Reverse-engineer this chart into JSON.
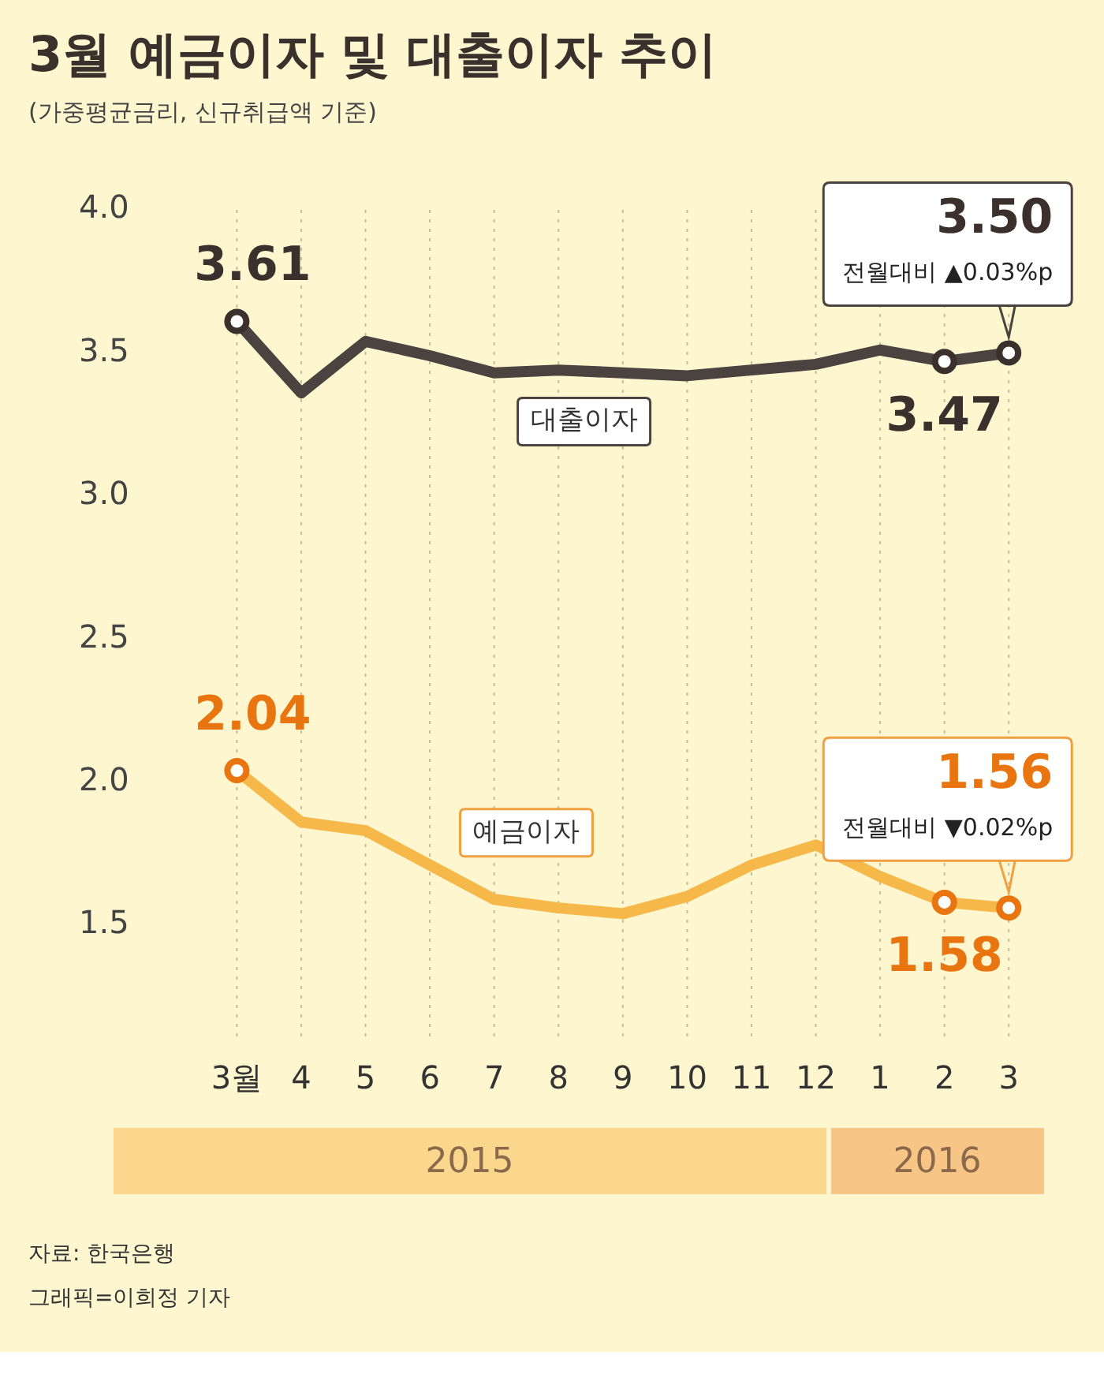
{
  "chart_data": {
    "type": "line",
    "title": "3월 예금이자 및 대출이자 추이",
    "subtitle": "(가중평균금리, 신규취급액 기준)",
    "categories": [
      "3월",
      "4",
      "5",
      "6",
      "7",
      "8",
      "9",
      "10",
      "11",
      "12",
      "1",
      "2",
      "3"
    ],
    "series": [
      {
        "name": "대출이자",
        "color": "#4a4340",
        "values": [
          3.61,
          3.36,
          3.54,
          3.49,
          3.43,
          3.44,
          3.43,
          3.42,
          3.44,
          3.46,
          3.51,
          3.47,
          3.5
        ],
        "value_labels": [
          "3.61",
          null,
          null,
          null,
          null,
          null,
          null,
          null,
          null,
          null,
          null,
          "3.47",
          "3.50"
        ]
      },
      {
        "name": "예금이자",
        "color": "#f7b84a",
        "values": [
          2.04,
          1.86,
          1.83,
          1.71,
          1.59,
          1.56,
          1.54,
          1.6,
          1.71,
          1.78,
          1.67,
          1.58,
          1.56
        ],
        "value_labels": [
          "2.04",
          null,
          null,
          null,
          null,
          null,
          null,
          null,
          null,
          null,
          null,
          "1.58",
          "1.56"
        ]
      }
    ],
    "ylim": [
      1.1,
      4.0
    ],
    "yticks": [
      1.5,
      {
        "value": 2,
        "label": "2.0"
      },
      2.5,
      {
        "value": 3,
        "label": "3.0"
      },
      3.5,
      {
        "value": 4,
        "label": "4.0"
      }
    ],
    "grid": "x",
    "line_style": "solid",
    "legend": false,
    "annotations": [
      {
        "text": "전월대비 ▲0.03%p",
        "x": "3",
        "y": 3.5
      },
      {
        "text": "전월대비 ▼0.02%p",
        "x": "3",
        "y": 1.56
      },
      "2015",
      "2016",
      "자료: 한국은행",
      "그래픽=이희정 기자"
    ]
  }
}
